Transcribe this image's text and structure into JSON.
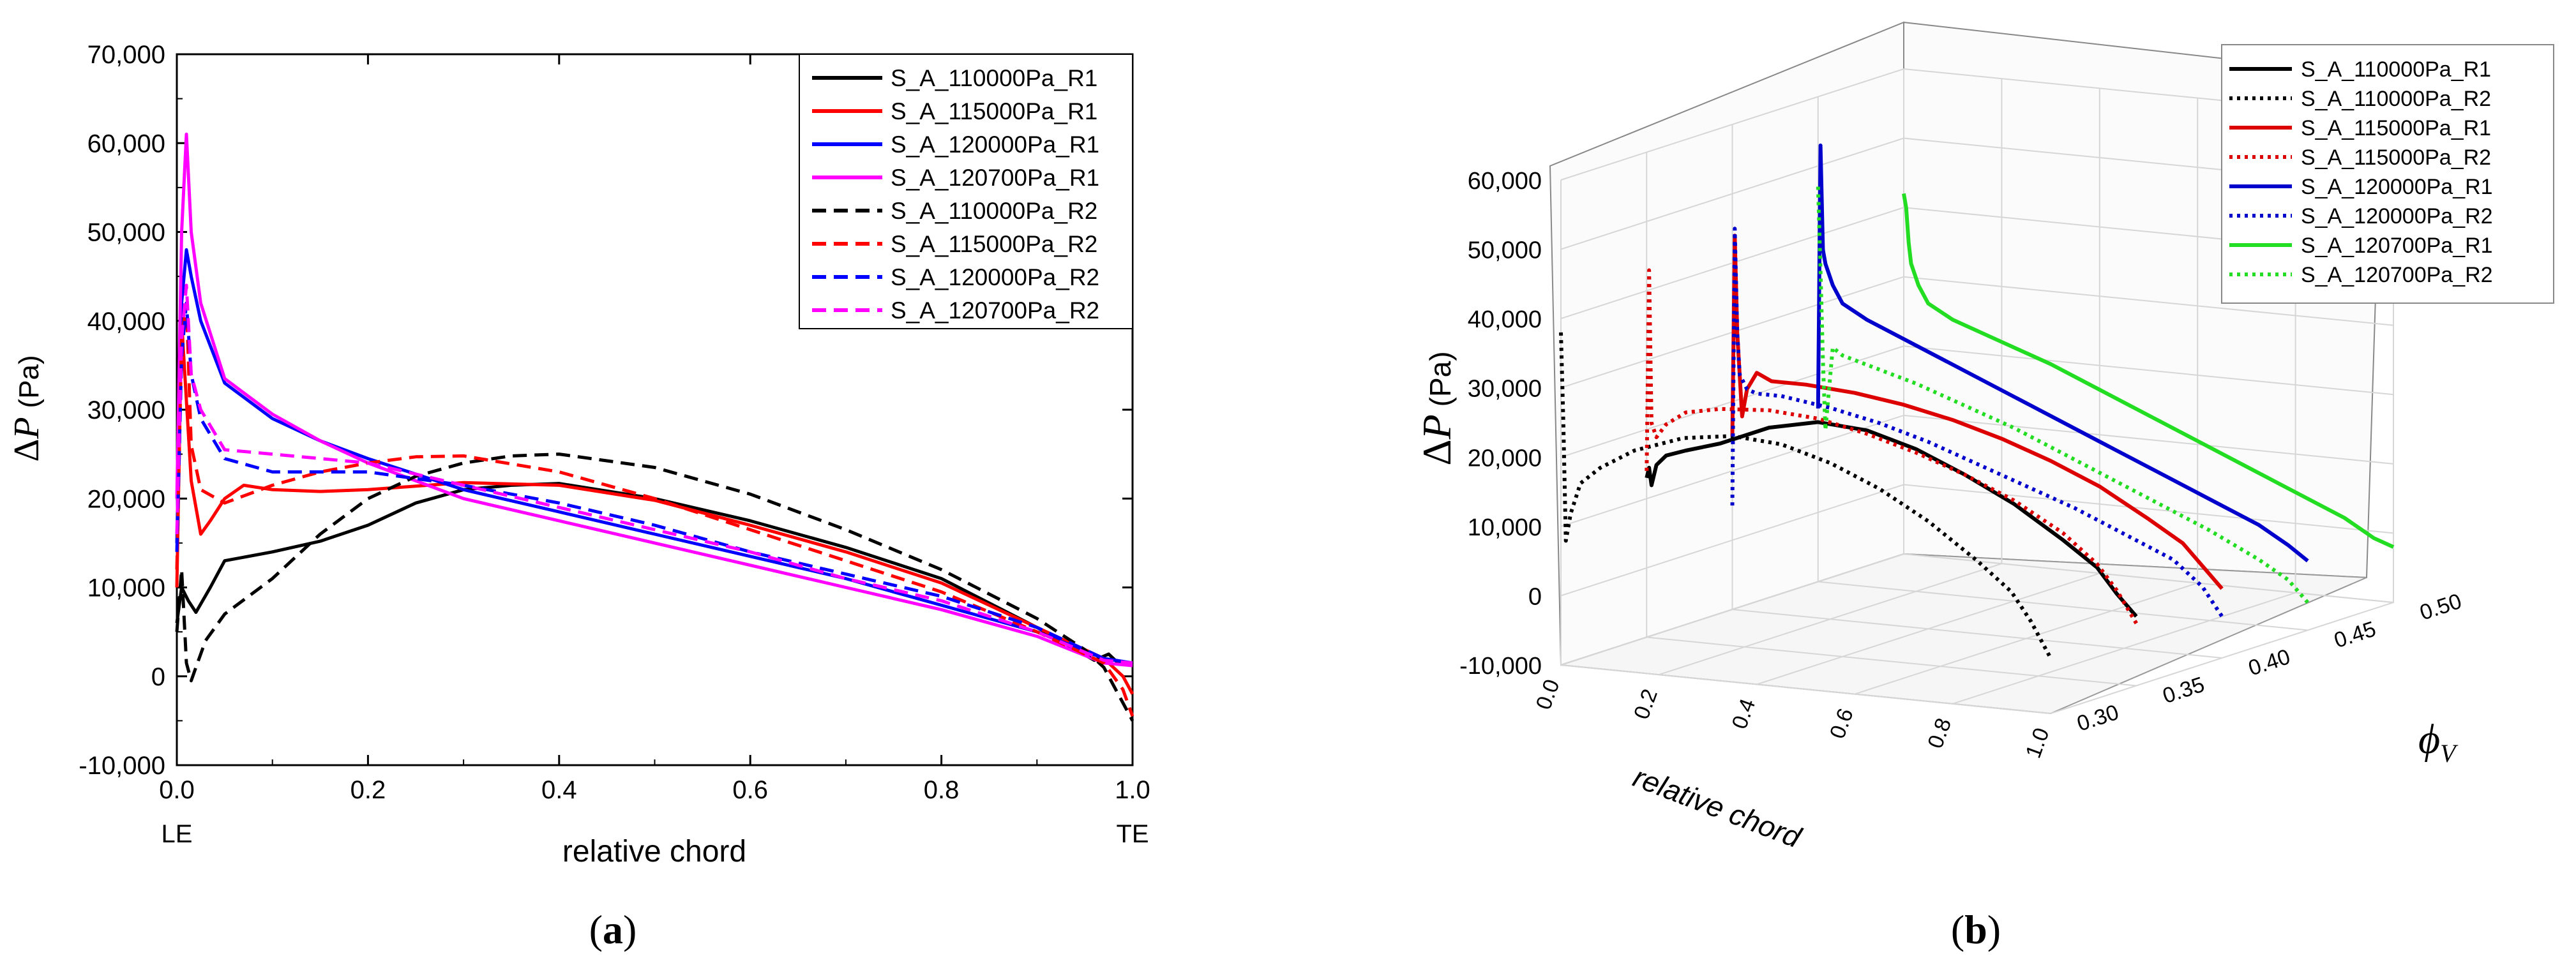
{
  "chart_data": [
    {
      "panel": "a",
      "type": "line",
      "panel_label_prefix": "(",
      "panel_label_letter": "a",
      "panel_label_suffix": ")",
      "xlabel": "relative chord",
      "ylabel_symbol": "Δ",
      "ylabel_var": "P",
      "ylabel_unit": "(Pa)",
      "xlim": [
        0,
        1
      ],
      "ylim": [
        -10000,
        70000
      ],
      "x_ticks": [
        0.0,
        0.2,
        0.4,
        0.6,
        0.8,
        1.0
      ],
      "x_tick_labels": [
        "0.0",
        "0.2",
        "0.4",
        "0.6",
        "0.8",
        "1.0"
      ],
      "y_ticks": [
        -10000,
        0,
        10000,
        20000,
        30000,
        40000,
        50000,
        60000,
        70000
      ],
      "y_tick_labels": [
        "-10,000",
        "0",
        "10,000",
        "20,000",
        "30,000",
        "40,000",
        "50,000",
        "60,000",
        "70,000"
      ],
      "le_label": "LE",
      "te_label": "TE",
      "legend_position": "top-right",
      "series": [
        {
          "name": "S_A_110000Pa_R1",
          "color": "#000000",
          "dash": "solid",
          "x": [
            0,
            0.005,
            0.012,
            0.02,
            0.035,
            0.05,
            0.1,
            0.15,
            0.2,
            0.25,
            0.3,
            0.35,
            0.4,
            0.5,
            0.6,
            0.7,
            0.8,
            0.9,
            0.96,
            0.975,
            0.985,
            1.0
          ],
          "values": [
            6000,
            10000,
            8500,
            7200,
            10000,
            13000,
            14000,
            15200,
            17000,
            19500,
            21000,
            21500,
            21700,
            20000,
            17500,
            14500,
            11000,
            5500,
            1800,
            2500,
            1500,
            1200
          ]
        },
        {
          "name": "S_A_115000Pa_R1",
          "color": "#ff0000",
          "dash": "solid",
          "x": [
            0,
            0.005,
            0.01,
            0.015,
            0.025,
            0.035,
            0.05,
            0.07,
            0.1,
            0.15,
            0.2,
            0.3,
            0.4,
            0.5,
            0.6,
            0.7,
            0.8,
            0.9,
            0.97,
            0.99,
            1.0
          ],
          "values": [
            10000,
            40000,
            31000,
            22000,
            16000,
            17500,
            20000,
            21500,
            21000,
            20800,
            21000,
            21800,
            21500,
            19800,
            17000,
            14000,
            10500,
            5500,
            2000,
            0,
            -2000
          ]
        },
        {
          "name": "S_A_120000Pa_R1",
          "color": "#0000ff",
          "dash": "solid",
          "x": [
            0,
            0.005,
            0.01,
            0.015,
            0.025,
            0.05,
            0.1,
            0.15,
            0.2,
            0.3,
            0.4,
            0.5,
            0.6,
            0.7,
            0.8,
            0.9,
            0.97,
            1.0
          ],
          "values": [
            15000,
            42000,
            48000,
            45000,
            40000,
            33000,
            29000,
            26500,
            24500,
            21000,
            18500,
            16000,
            13500,
            11000,
            8000,
            5000,
            2000,
            1500
          ]
        },
        {
          "name": "S_A_120700Pa_R1",
          "color": "#ff00ff",
          "dash": "solid",
          "x": [
            0,
            0.005,
            0.01,
            0.015,
            0.025,
            0.05,
            0.1,
            0.15,
            0.2,
            0.3,
            0.4,
            0.5,
            0.6,
            0.7,
            0.8,
            0.9,
            0.97,
            1.0
          ],
          "values": [
            20000,
            50000,
            61000,
            50000,
            42000,
            33500,
            29500,
            26500,
            24000,
            20000,
            17500,
            15000,
            12500,
            10000,
            7500,
            4500,
            1500,
            1200
          ]
        },
        {
          "name": "S_A_110000Pa_R2",
          "color": "#000000",
          "dash": "dashed",
          "x": [
            0,
            0.005,
            0.01,
            0.015,
            0.02,
            0.03,
            0.05,
            0.1,
            0.15,
            0.2,
            0.25,
            0.3,
            0.35,
            0.4,
            0.5,
            0.6,
            0.7,
            0.8,
            0.9,
            0.95,
            0.97,
            0.985,
            1.0
          ],
          "values": [
            5000,
            12000,
            1500,
            -500,
            1000,
            4000,
            7000,
            11000,
            16000,
            20000,
            22500,
            24000,
            24800,
            25000,
            23500,
            20500,
            16500,
            12000,
            6500,
            3000,
            1000,
            -2000,
            -5000
          ]
        },
        {
          "name": "S_A_115000Pa_R2",
          "color": "#ff0000",
          "dash": "dashed",
          "x": [
            0,
            0.005,
            0.01,
            0.015,
            0.025,
            0.05,
            0.1,
            0.15,
            0.2,
            0.25,
            0.3,
            0.4,
            0.5,
            0.6,
            0.7,
            0.8,
            0.9,
            0.97,
            0.99,
            1.0
          ],
          "values": [
            12000,
            38000,
            42000,
            26000,
            21000,
            19500,
            21500,
            23000,
            24000,
            24700,
            24800,
            23000,
            20000,
            16500,
            13000,
            9500,
            5000,
            1500,
            -1500,
            -4500
          ]
        },
        {
          "name": "S_A_120000Pa_R2",
          "color": "#0000ff",
          "dash": "dashed",
          "x": [
            0,
            0.005,
            0.01,
            0.015,
            0.025,
            0.05,
            0.1,
            0.2,
            0.3,
            0.4,
            0.5,
            0.6,
            0.7,
            0.8,
            0.9,
            0.97,
            1.0
          ],
          "values": [
            14000,
            36000,
            42000,
            34000,
            29000,
            24500,
            23000,
            23000,
            21500,
            19500,
            17000,
            14000,
            11500,
            9000,
            5500,
            2000,
            1500
          ]
        },
        {
          "name": "S_A_120700Pa_R2",
          "color": "#ff00ff",
          "dash": "dashed",
          "x": [
            0,
            0.005,
            0.01,
            0.015,
            0.025,
            0.05,
            0.1,
            0.2,
            0.3,
            0.4,
            0.5,
            0.6,
            0.7,
            0.8,
            0.9,
            0.97,
            1.0
          ],
          "values": [
            16000,
            38000,
            44000,
            34000,
            30000,
            25500,
            25000,
            24000,
            21500,
            19000,
            16500,
            14000,
            11000,
            8500,
            5000,
            1800,
            1500
          ]
        }
      ]
    },
    {
      "panel": "b",
      "type": "line",
      "projection": "3d",
      "panel_label_prefix": "(",
      "panel_label_letter": "b",
      "panel_label_suffix": ")",
      "xlabel": "relative chord",
      "zlabel_symbol": "Δ",
      "zlabel_var": "P",
      "zlabel_unit": "(Pa)",
      "ylabel_symbol": "ϕ",
      "ylabel_sub": "V",
      "xlim": [
        0,
        1
      ],
      "ylim": [
        0.3,
        0.5
      ],
      "zlim": [
        -10000,
        60000
      ],
      "x_ticks": [
        0.0,
        0.2,
        0.4,
        0.6,
        0.8,
        1.0
      ],
      "x_tick_labels": [
        "0.0",
        "0.2",
        "0.4",
        "0.6",
        "0.8",
        "1.0"
      ],
      "y_ticks": [
        0.3,
        0.35,
        0.4,
        0.45,
        0.5
      ],
      "y_tick_labels": [
        "0.30",
        "0.35",
        "0.40",
        "0.45",
        "0.50"
      ],
      "z_ticks": [
        -10000,
        0,
        10000,
        20000,
        30000,
        40000,
        50000,
        60000
      ],
      "z_tick_labels": [
        "-10,000",
        "0",
        "10,000",
        "20,000",
        "30,000",
        "40,000",
        "50,000",
        "60,000"
      ],
      "legend_position": "top-right",
      "series": [
        {
          "name": "S_A_110000Pa_R1",
          "color": "#000000",
          "dash": "solid",
          "phi": 0.35,
          "x": [
            0,
            0.005,
            0.01,
            0.02,
            0.04,
            0.08,
            0.15,
            0.25,
            0.35,
            0.45,
            0.55,
            0.65,
            0.75,
            0.85,
            0.92,
            0.96,
            1.0
          ],
          "values": [
            13000,
            14500,
            12000,
            15000,
            16500,
            17500,
            19000,
            22000,
            23500,
            23000,
            21000,
            18000,
            14500,
            10000,
            6500,
            3000,
            0
          ]
        },
        {
          "name": "S_A_110000Pa_R2",
          "color": "#000000",
          "dash": "dotted",
          "phi": 0.3,
          "x": [
            0,
            0.005,
            0.01,
            0.02,
            0.04,
            0.08,
            0.15,
            0.25,
            0.35,
            0.45,
            0.55,
            0.65,
            0.75,
            0.85,
            0.92,
            0.96,
            1.0
          ],
          "values": [
            38000,
            25000,
            8000,
            12000,
            16500,
            19000,
            22000,
            24500,
            25500,
            25000,
            23000,
            20000,
            16000,
            11000,
            7000,
            3000,
            -2000
          ]
        },
        {
          "name": "S_A_115000Pa_R1",
          "color": "#dd0000",
          "dash": "solid",
          "phi": 0.4,
          "x": [
            0,
            0.005,
            0.01,
            0.02,
            0.03,
            0.05,
            0.08,
            0.15,
            0.25,
            0.35,
            0.45,
            0.55,
            0.65,
            0.75,
            0.85,
            0.92,
            0.96,
            1.0
          ],
          "values": [
            15000,
            44000,
            30000,
            18000,
            22000,
            24500,
            23500,
            23500,
            23000,
            22000,
            20500,
            18500,
            16000,
            13000,
            9000,
            6000,
            3000,
            0
          ]
        },
        {
          "name": "S_A_115000Pa_R2",
          "color": "#dd0000",
          "dash": "dotted",
          "phi": 0.35,
          "x": [
            0,
            0.005,
            0.01,
            0.02,
            0.04,
            0.08,
            0.15,
            0.25,
            0.35,
            0.45,
            0.55,
            0.65,
            0.75,
            0.85,
            0.92,
            0.96,
            1.0
          ],
          "values": [
            14000,
            43000,
            21000,
            19000,
            21000,
            23000,
            24000,
            24500,
            24000,
            22500,
            20500,
            18000,
            15000,
            11000,
            7000,
            3500,
            -1000
          ]
        },
        {
          "name": "S_A_120000Pa_R1",
          "color": "#0000cc",
          "dash": "solid",
          "phi": 0.45,
          "x": [
            0,
            0.005,
            0.01,
            0.015,
            0.03,
            0.05,
            0.1,
            0.2,
            0.3,
            0.4,
            0.5,
            0.6,
            0.7,
            0.8,
            0.9,
            0.96,
            1.0
          ],
          "values": [
            15000,
            53000,
            38000,
            36000,
            33000,
            30500,
            28500,
            25500,
            22500,
            19500,
            16500,
            13500,
            10500,
            7500,
            4500,
            2000,
            0
          ]
        },
        {
          "name": "S_A_120000Pa_R2",
          "color": "#0000cc",
          "dash": "dotted",
          "phi": 0.4,
          "x": [
            0,
            0.005,
            0.01,
            0.015,
            0.03,
            0.05,
            0.1,
            0.2,
            0.3,
            0.4,
            0.5,
            0.6,
            0.7,
            0.8,
            0.9,
            0.96,
            1.0
          ],
          "values": [
            5000,
            45000,
            30000,
            24000,
            22000,
            21500,
            21500,
            20500,
            19000,
            17000,
            14500,
            12000,
            9500,
            6500,
            3500,
            0,
            -4000
          ]
        },
        {
          "name": "S_A_120700Pa_R1",
          "color": "#22dd22",
          "dash": "solid",
          "phi": 0.5,
          "x": [
            0,
            0.005,
            0.01,
            0.015,
            0.03,
            0.05,
            0.1,
            0.2,
            0.3,
            0.4,
            0.5,
            0.6,
            0.7,
            0.8,
            0.9,
            0.96,
            1.0
          ],
          "values": [
            42000,
            40000,
            35000,
            32000,
            29000,
            26500,
            24500,
            22000,
            19500,
            16500,
            13500,
            10500,
            7500,
            4500,
            1500,
            -1000,
            -2000
          ]
        },
        {
          "name": "S_A_120700Pa_R2",
          "color": "#22dd22",
          "dash": "dotted",
          "phi": 0.45,
          "x": [
            0,
            0.005,
            0.01,
            0.015,
            0.03,
            0.05,
            0.1,
            0.2,
            0.3,
            0.4,
            0.5,
            0.6,
            0.7,
            0.8,
            0.9,
            0.96,
            1.0
          ],
          "values": [
            47000,
            35000,
            22000,
            12000,
            24000,
            23000,
            22000,
            20000,
            17500,
            15000,
            12000,
            9000,
            6000,
            3000,
            -500,
            -3000,
            -6000
          ]
        }
      ]
    }
  ]
}
